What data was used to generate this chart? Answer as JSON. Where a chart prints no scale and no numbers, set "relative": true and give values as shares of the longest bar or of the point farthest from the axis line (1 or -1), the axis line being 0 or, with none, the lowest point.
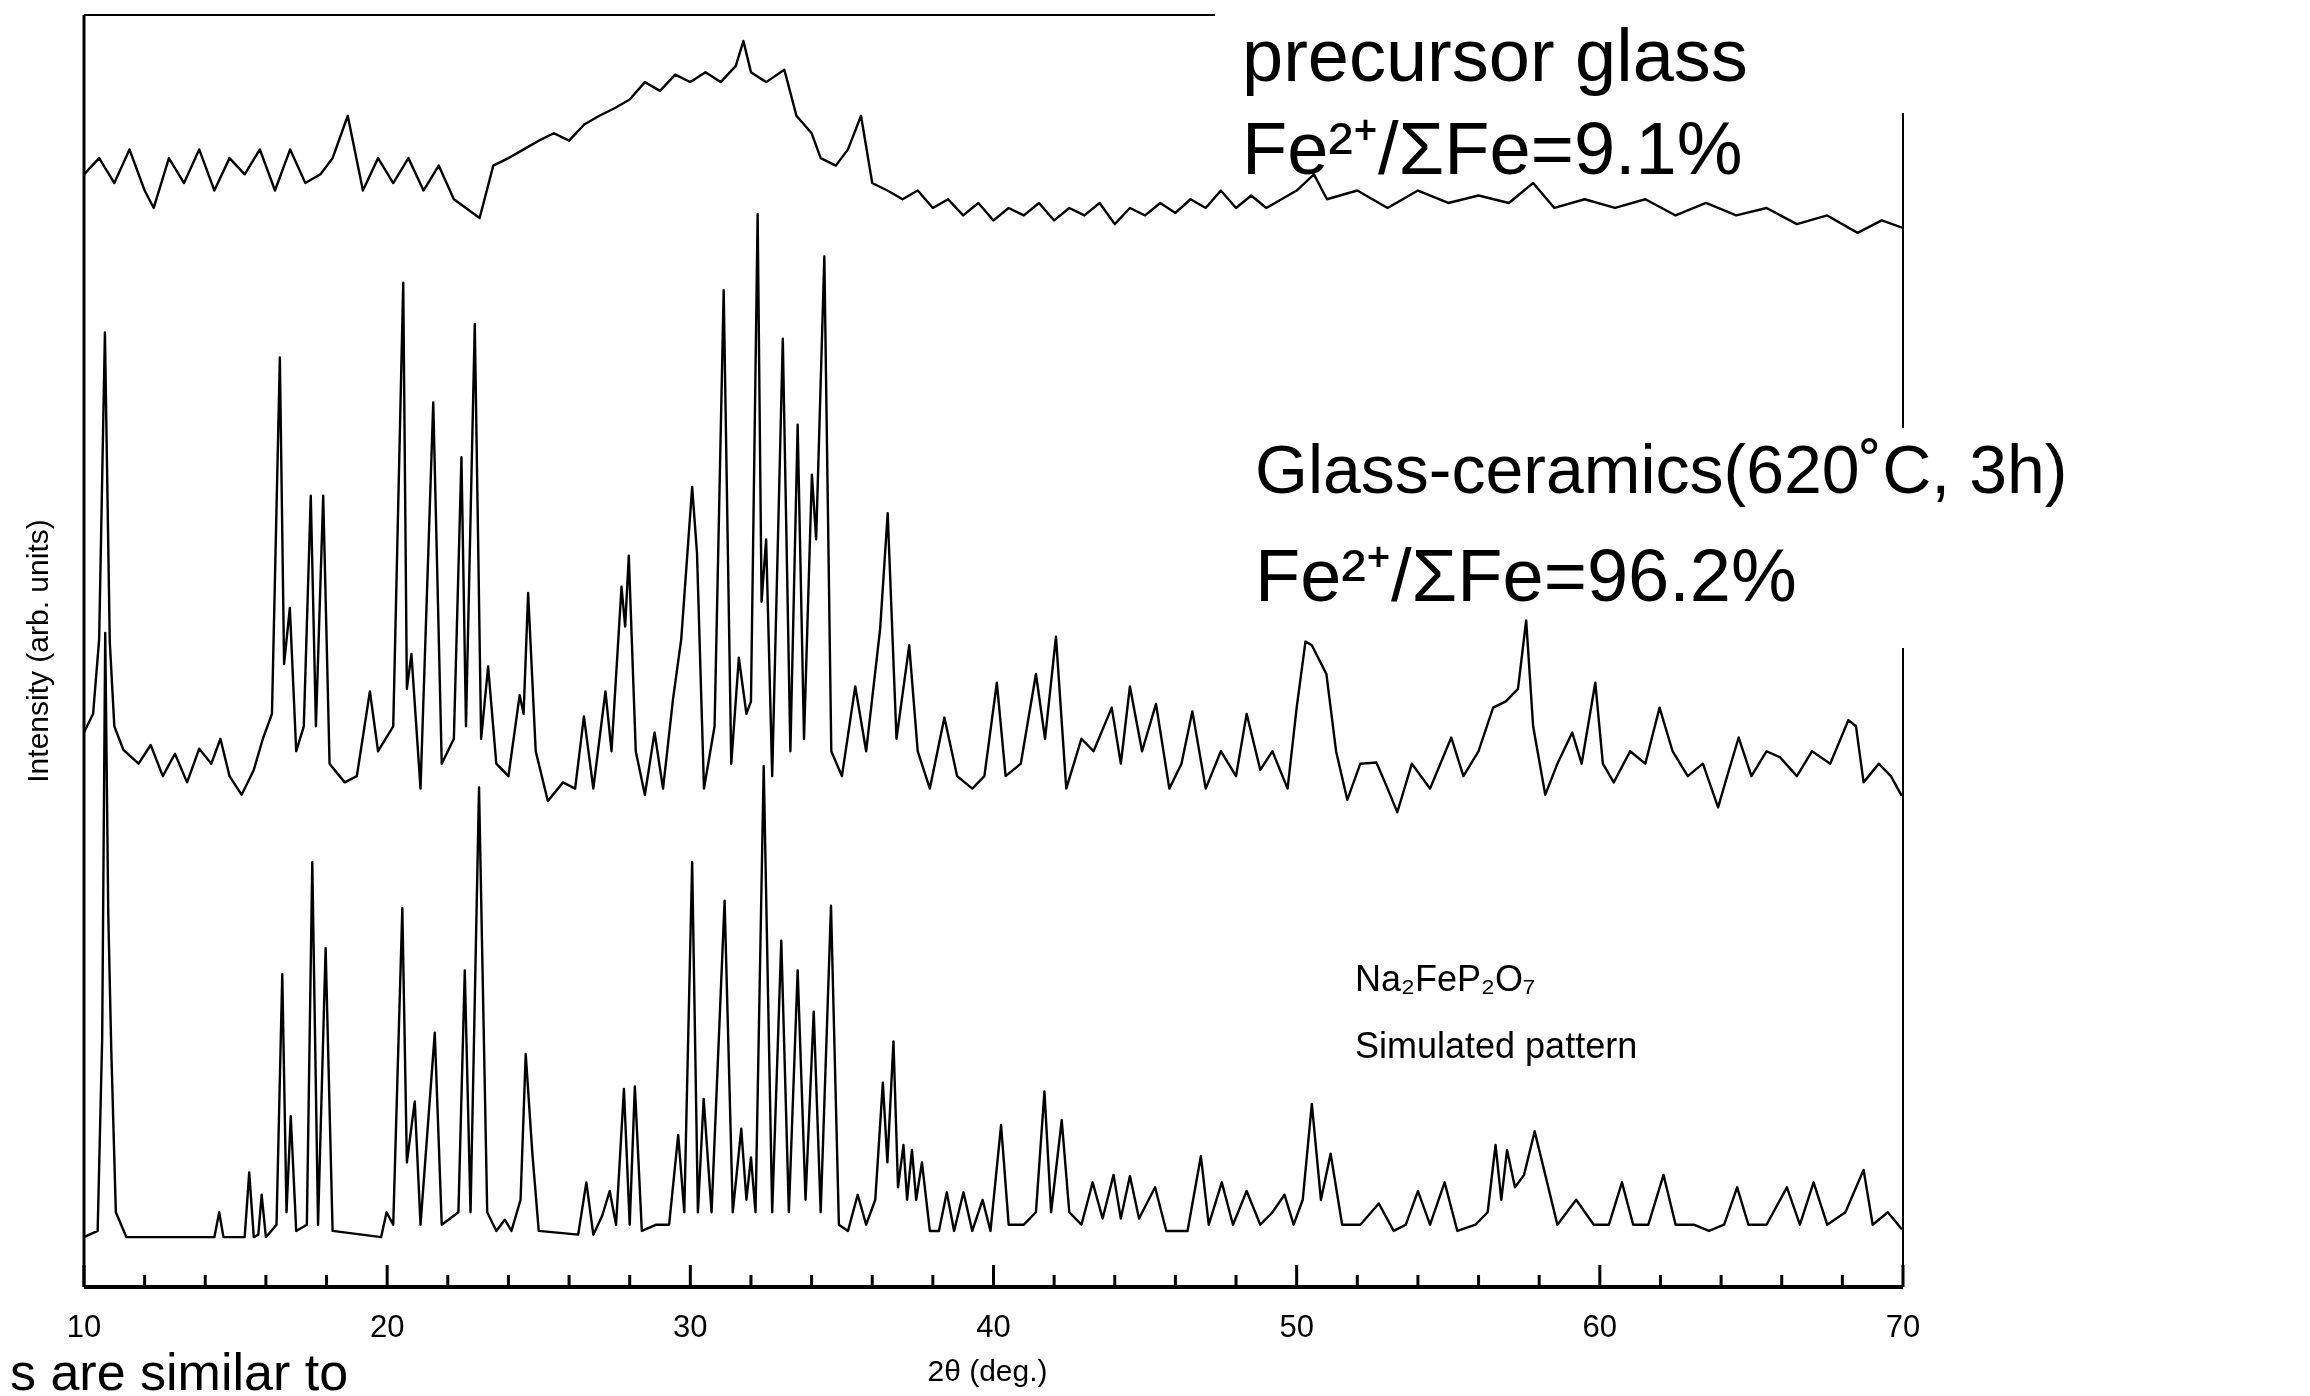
{
  "chart_data": {
    "type": "line",
    "relative": true,
    "xlabel": "2θ (deg.)",
    "ylabel": "Intensity (arb. units)",
    "xlim": [
      10,
      70
    ],
    "xticks": [
      10,
      {
        "value": 12,
        "label": null
      },
      {
        "value": 14,
        "label": null
      },
      {
        "value": 16,
        "label": null
      },
      {
        "value": 18,
        "label": null
      },
      20,
      {
        "value": 22,
        "label": null
      },
      {
        "value": 24,
        "label": null
      },
      {
        "value": 26,
        "label": null
      },
      {
        "value": 28,
        "label": null
      },
      30,
      {
        "value": 32,
        "label": null
      },
      {
        "value": 34,
        "label": null
      },
      {
        "value": 36,
        "label": null
      },
      {
        "value": 38,
        "label": null
      },
      40,
      {
        "value": 42,
        "label": null
      },
      {
        "value": 44,
        "label": null
      },
      {
        "value": 46,
        "label": null
      },
      {
        "value": 48,
        "label": null
      },
      50,
      {
        "value": 52,
        "label": null
      },
      {
        "value": 54,
        "label": null
      },
      {
        "value": 56,
        "label": null
      },
      {
        "value": 58,
        "label": null
      },
      60,
      {
        "value": 62,
        "label": null
      },
      {
        "value": 64,
        "label": null
      },
      {
        "value": 66,
        "label": null
      },
      {
        "value": 68,
        "label": null
      },
      70
    ],
    "annotations": [
      "precursor glass",
      "Fe²⁺/ΣFe=9.1%",
      "Glass-ceramics(620˚C, 3h)",
      "Fe²⁺/ΣFe=96.2%",
      "Na₂FeP₂O₇",
      "Simulated pattern",
      "s are similar to"
    ],
    "series": [
      {
        "color": "#000000",
        "x": [
          10.0,
          10.5,
          11.0,
          11.5,
          12.0,
          12.3,
          12.8,
          13.3,
          13.8,
          14.3,
          14.8,
          15.3,
          15.8,
          16.3,
          16.8,
          17.3,
          17.8,
          18.2,
          18.7,
          19.2,
          19.7,
          20.2,
          20.7,
          21.2,
          21.7,
          22.2,
          23.05,
          23.5,
          24.0,
          24.5,
          25.0,
          25.5,
          26.0,
          26.5,
          27.0,
          27.5,
          28.0,
          28.5,
          29.0,
          29.5,
          30.0,
          30.5,
          31.0,
          31.5,
          31.75,
          32.0,
          32.5,
          33.1,
          33.5,
          34.0,
          34.3,
          34.8,
          35.2,
          35.63,
          36.0,
          36.5,
          37.0,
          37.5,
          38.0,
          38.5,
          39.0,
          39.5,
          40.0,
          40.5,
          41.0,
          41.5,
          42.0,
          42.5,
          43.0,
          43.5,
          44.0,
          44.5,
          45.0,
          45.5,
          46.0,
          46.5,
          47.0,
          47.5,
          48.0,
          48.5,
          49.0,
          49.5,
          50.0,
          50.57,
          51.0,
          52.0,
          53.0,
          54.0,
          55.0,
          56.0,
          57.0,
          57.8,
          58.5,
          59.5,
          60.5,
          61.5,
          62.5,
          63.5,
          64.5,
          65.5,
          66.5,
          67.5,
          68.5,
          69.3,
          70.0
        ],
        "values": [
          0.893,
          0.906,
          0.886,
          0.913,
          0.88,
          0.866,
          0.906,
          0.886,
          0.913,
          0.88,
          0.906,
          0.893,
          0.913,
          0.88,
          0.913,
          0.886,
          0.893,
          0.906,
          0.94,
          0.88,
          0.906,
          0.886,
          0.906,
          0.88,
          0.9,
          0.873,
          0.858,
          0.9,
          0.906,
          0.913,
          0.92,
          0.926,
          0.92,
          0.933,
          0.94,
          0.946,
          0.953,
          0.967,
          0.96,
          0.973,
          0.967,
          0.975,
          0.967,
          0.98,
          1.0,
          0.975,
          0.967,
          0.977,
          0.94,
          0.926,
          0.906,
          0.9,
          0.913,
          0.94,
          0.886,
          0.88,
          0.873,
          0.88,
          0.866,
          0.873,
          0.86,
          0.87,
          0.856,
          0.866,
          0.86,
          0.87,
          0.856,
          0.866,
          0.86,
          0.87,
          0.853,
          0.866,
          0.86,
          0.87,
          0.862,
          0.873,
          0.866,
          0.88,
          0.866,
          0.876,
          0.866,
          0.873,
          0.88,
          0.893,
          0.873,
          0.88,
          0.866,
          0.88,
          0.87,
          0.876,
          0.87,
          0.886,
          0.866,
          0.873,
          0.866,
          0.873,
          0.86,
          0.87,
          0.86,
          0.866,
          0.853,
          0.86,
          0.846,
          0.856,
          0.85
        ]
      },
      {
        "color": "#000000",
        "x": [
          10.0,
          10.3,
          10.5,
          10.69,
          10.85,
          11.0,
          11.3,
          11.8,
          12.2,
          12.6,
          13.0,
          13.4,
          13.8,
          14.2,
          14.5,
          14.8,
          15.2,
          15.6,
          15.9,
          16.2,
          16.46,
          16.6,
          16.79,
          17.0,
          17.25,
          17.48,
          17.65,
          17.89,
          18.1,
          18.6,
          19.0,
          19.43,
          19.7,
          20.2,
          20.53,
          20.65,
          20.8,
          21.1,
          21.52,
          21.8,
          22.2,
          22.45,
          22.6,
          22.89,
          23.1,
          23.33,
          23.6,
          24.0,
          24.37,
          24.5,
          24.65,
          24.9,
          25.3,
          25.8,
          26.2,
          26.49,
          26.8,
          27.2,
          27.4,
          27.73,
          27.85,
          27.97,
          28.2,
          28.5,
          28.82,
          29.1,
          29.43,
          29.7,
          30.06,
          30.22,
          30.45,
          30.8,
          31.1,
          31.35,
          31.6,
          31.85,
          32.0,
          32.22,
          32.35,
          32.5,
          32.7,
          33.05,
          33.3,
          33.54,
          33.75,
          34.01,
          34.15,
          34.42,
          34.65,
          35.0,
          35.44,
          35.8,
          36.26,
          36.51,
          36.8,
          37.22,
          37.5,
          37.9,
          38.38,
          38.8,
          39.3,
          39.7,
          40.11,
          40.4,
          40.9,
          41.4,
          41.7,
          42.06,
          42.4,
          42.9,
          43.3,
          43.9,
          44.2,
          44.5,
          44.9,
          45.36,
          45.8,
          46.2,
          46.56,
          47.0,
          47.5,
          48.0,
          48.35,
          48.8,
          49.2,
          49.7,
          50.0,
          50.29,
          50.5,
          50.98,
          51.3,
          51.67,
          52.1,
          52.63,
          53.0,
          53.32,
          53.8,
          54.4,
          55.1,
          55.5,
          56.0,
          56.48,
          56.9,
          57.3,
          57.57,
          57.8,
          58.2,
          58.6,
          59.09,
          59.4,
          59.85,
          60.1,
          60.46,
          61.0,
          61.5,
          61.97,
          62.4,
          62.9,
          63.4,
          63.9,
          64.2,
          64.58,
          65.0,
          65.5,
          65.95,
          66.5,
          67.0,
          67.6,
          68.2,
          68.45,
          68.7,
          69.2,
          69.6,
          69.94
        ],
        "values": [
          0.445,
          0.46,
          0.52,
          0.766,
          0.518,
          0.45,
          0.431,
          0.42,
          0.435,
          0.41,
          0.428,
          0.405,
          0.432,
          0.42,
          0.44,
          0.41,
          0.395,
          0.415,
          0.44,
          0.46,
          0.746,
          0.5,
          0.545,
          0.43,
          0.45,
          0.635,
          0.45,
          0.635,
          0.42,
          0.405,
          0.41,
          0.478,
          0.43,
          0.45,
          0.806,
          0.48,
          0.508,
          0.4,
          0.71,
          0.42,
          0.44,
          0.666,
          0.45,
          0.773,
          0.44,
          0.498,
          0.42,
          0.41,
          0.475,
          0.46,
          0.557,
          0.43,
          0.39,
          0.405,
          0.4,
          0.458,
          0.4,
          0.478,
          0.43,
          0.562,
          0.53,
          0.587,
          0.43,
          0.395,
          0.445,
          0.4,
          0.472,
          0.52,
          0.642,
          0.589,
          0.4,
          0.45,
          0.8,
          0.42,
          0.505,
          0.46,
          0.47,
          0.861,
          0.55,
          0.6,
          0.41,
          0.761,
          0.43,
          0.692,
          0.44,
          0.652,
          0.6,
          0.827,
          0.43,
          0.41,
          0.482,
          0.43,
          0.528,
          0.621,
          0.44,
          0.515,
          0.43,
          0.4,
          0.457,
          0.41,
          0.4,
          0.41,
          0.485,
          0.41,
          0.42,
          0.492,
          0.44,
          0.522,
          0.4,
          0.44,
          0.43,
          0.465,
          0.42,
          0.482,
          0.43,
          0.468,
          0.4,
          0.42,
          0.462,
          0.4,
          0.43,
          0.41,
          0.46,
          0.415,
          0.43,
          0.4,
          0.465,
          0.518,
          0.515,
          0.492,
          0.43,
          0.391,
          0.42,
          0.421,
          0.4,
          0.381,
          0.42,
          0.4,
          0.441,
          0.41,
          0.43,
          0.465,
          0.47,
          0.48,
          0.535,
          0.45,
          0.395,
          0.42,
          0.445,
          0.42,
          0.485,
          0.42,
          0.405,
          0.43,
          0.42,
          0.465,
          0.43,
          0.41,
          0.42,
          0.385,
          0.41,
          0.441,
          0.41,
          0.43,
          0.425,
          0.41,
          0.43,
          0.42,
          0.455,
          0.45,
          0.405,
          0.42,
          0.41,
          0.395
        ]
      },
      {
        "color": "#000000",
        "x": [
          10.0,
          10.45,
          10.6,
          10.7,
          10.8,
          10.9,
          11.05,
          11.4,
          14.3,
          14.46,
          14.6,
          15.3,
          15.45,
          15.6,
          15.75,
          15.86,
          16.0,
          16.35,
          16.54,
          16.68,
          16.82,
          17.0,
          17.35,
          17.53,
          17.72,
          17.97,
          18.2,
          19.8,
          19.98,
          20.2,
          20.5,
          20.65,
          20.91,
          21.1,
          21.57,
          21.8,
          22.35,
          22.56,
          22.75,
          23.03,
          23.3,
          23.6,
          23.88,
          24.1,
          24.4,
          24.57,
          24.79,
          25.0,
          26.3,
          26.57,
          26.8,
          27.09,
          27.34,
          27.55,
          27.81,
          28.0,
          28.17,
          28.4,
          28.88,
          29.3,
          29.6,
          29.8,
          30.06,
          30.25,
          30.44,
          30.7,
          31.13,
          31.4,
          31.68,
          31.85,
          32.0,
          32.15,
          32.42,
          32.7,
          33.0,
          33.25,
          33.54,
          33.8,
          34.07,
          34.3,
          34.64,
          34.9,
          35.2,
          35.52,
          35.8,
          36.1,
          36.35,
          36.5,
          36.7,
          36.85,
          37.03,
          37.15,
          37.31,
          37.45,
          37.64,
          37.9,
          38.2,
          38.46,
          38.7,
          39.01,
          39.3,
          39.64,
          39.9,
          40.25,
          40.5,
          41.0,
          41.4,
          41.68,
          41.9,
          42.25,
          42.5,
          42.9,
          43.27,
          43.6,
          43.96,
          44.2,
          44.5,
          44.8,
          45.33,
          45.7,
          46.4,
          46.84,
          47.1,
          47.53,
          47.9,
          48.35,
          48.8,
          49.2,
          49.6,
          49.9,
          50.2,
          50.5,
          50.8,
          51.12,
          51.5,
          52.1,
          52.71,
          53.2,
          53.6,
          54.0,
          54.4,
          54.88,
          55.3,
          55.9,
          56.3,
          56.56,
          56.75,
          56.94,
          57.2,
          57.5,
          57.85,
          58.2,
          58.6,
          59.22,
          59.8,
          60.3,
          60.73,
          61.1,
          61.6,
          62.1,
          62.5,
          63.1,
          63.6,
          64.1,
          64.53,
          64.9,
          65.5,
          66.17,
          66.6,
          67.05,
          67.5,
          68.1,
          68.7,
          69.0,
          69.5,
          69.94
        ],
        "values": [
          0.04,
          0.045,
          0.2,
          0.525,
          0.3,
          0.19,
          0.06,
          0.04,
          0.04,
          0.06,
          0.04,
          0.04,
          0.092,
          0.04,
          0.042,
          0.074,
          0.04,
          0.05,
          0.251,
          0.06,
          0.137,
          0.045,
          0.05,
          0.341,
          0.05,
          0.272,
          0.045,
          0.04,
          0.06,
          0.05,
          0.304,
          0.1,
          0.149,
          0.05,
          0.204,
          0.05,
          0.06,
          0.254,
          0.06,
          0.401,
          0.06,
          0.045,
          0.054,
          0.045,
          0.07,
          0.187,
          0.107,
          0.045,
          0.042,
          0.084,
          0.042,
          0.057,
          0.077,
          0.05,
          0.159,
          0.05,
          0.161,
          0.045,
          0.05,
          0.05,
          0.122,
          0.06,
          0.341,
          0.06,
          0.151,
          0.06,
          0.31,
          0.06,
          0.127,
          0.07,
          0.104,
          0.06,
          0.418,
          0.06,
          0.278,
          0.06,
          0.254,
          0.07,
          0.221,
          0.06,
          0.306,
          0.05,
          0.045,
          0.074,
          0.05,
          0.07,
          0.164,
          0.1,
          0.197,
          0.08,
          0.114,
          0.07,
          0.11,
          0.07,
          0.1,
          0.045,
          0.045,
          0.076,
          0.045,
          0.076,
          0.045,
          0.07,
          0.045,
          0.13,
          0.05,
          0.05,
          0.06,
          0.157,
          0.06,
          0.134,
          0.06,
          0.05,
          0.084,
          0.055,
          0.09,
          0.055,
          0.089,
          0.055,
          0.08,
          0.045,
          0.045,
          0.105,
          0.05,
          0.084,
          0.05,
          0.077,
          0.05,
          0.06,
          0.074,
          0.05,
          0.07,
          0.147,
          0.07,
          0.107,
          0.05,
          0.05,
          0.067,
          0.045,
          0.05,
          0.077,
          0.05,
          0.084,
          0.045,
          0.05,
          0.06,
          0.114,
          0.07,
          0.11,
          0.08,
          0.09,
          0.125,
          0.09,
          0.05,
          0.07,
          0.05,
          0.05,
          0.084,
          0.05,
          0.05,
          0.09,
          0.05,
          0.05,
          0.045,
          0.05,
          0.08,
          0.05,
          0.05,
          0.08,
          0.05,
          0.084,
          0.05,
          0.06,
          0.094,
          0.05,
          0.06,
          0.047
        ]
      }
    ]
  }
}
